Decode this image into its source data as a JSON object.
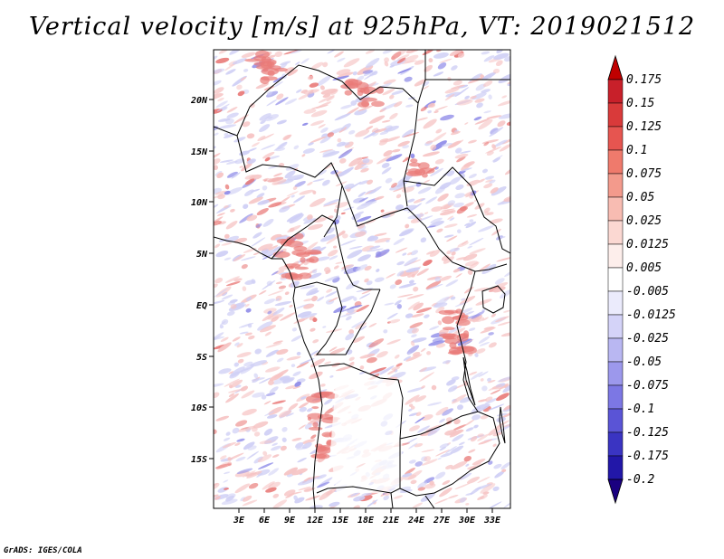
{
  "title": "Vertical velocity [m/s] at 925hPa, VT: 2019021512",
  "footer": "GrADS: IGES/COLA",
  "axes": {
    "lat_ticks": [
      "20N",
      "15N",
      "10N",
      "5N",
      "EQ",
      "5S",
      "10S",
      "15S"
    ],
    "lon_ticks": [
      "3E",
      "6E",
      "9E",
      "12E",
      "15E",
      "18E",
      "21E",
      "24E",
      "27E",
      "30E",
      "33E"
    ]
  },
  "colorbar": {
    "labels": [
      "0.175",
      "0.15",
      "0.125",
      "0.1",
      "0.075",
      "0.05",
      "0.025",
      "0.0125",
      "0.005",
      "-0.005",
      "-0.0125",
      "-0.025",
      "-0.05",
      "-0.075",
      "-0.1",
      "-0.125",
      "-0.175",
      "-0.2"
    ],
    "colors": [
      "#a50f15",
      "#c8202a",
      "#d93a3a",
      "#e65550",
      "#ef7a6c",
      "#f39a8c",
      "#f8bcb2",
      "#fbd8d2",
      "#fdeeeb",
      "#ffffff",
      "#ebebfc",
      "#d4d3f8",
      "#b9b7f2",
      "#9c98ec",
      "#7c77e4",
      "#5a54d6",
      "#3a34c2",
      "#2217a8",
      "#160a8a",
      "#c00000",
      "#1a0080"
    ]
  },
  "field_colors": {
    "positive_light": "#f6c4c4",
    "positive_strong": "#e97a78",
    "negative_light": "#cfcff5",
    "negative_strong": "#8f8ce8"
  }
}
